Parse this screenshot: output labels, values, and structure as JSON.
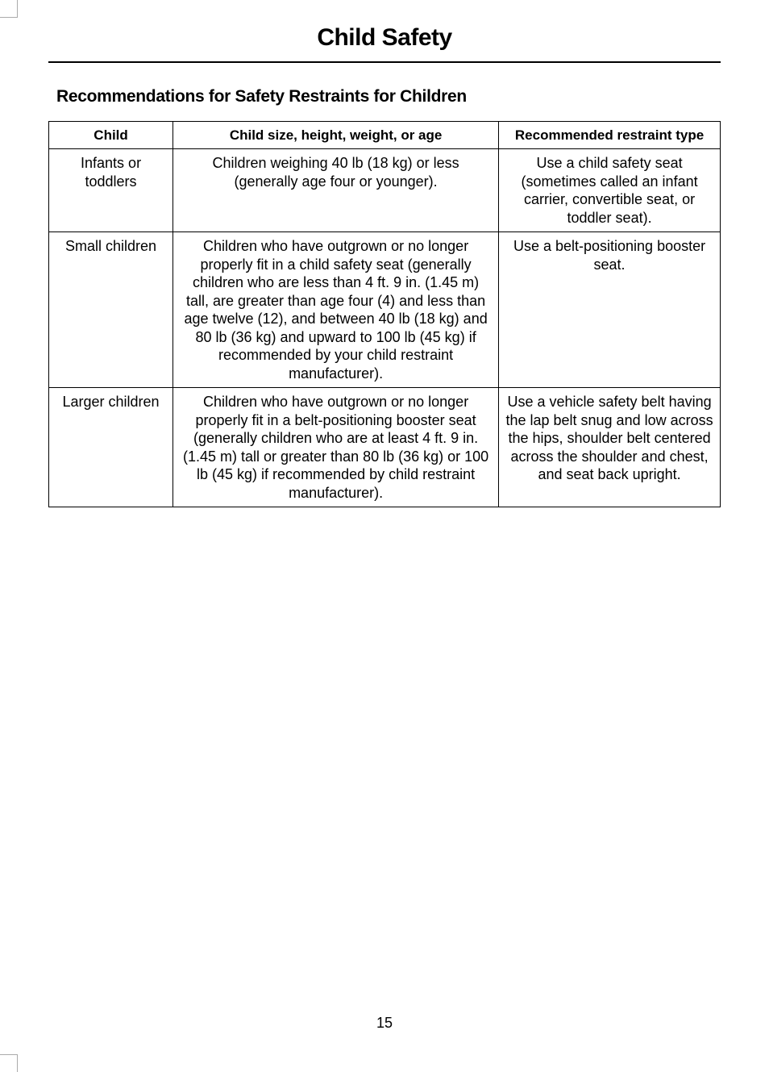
{
  "page": {
    "title": "Child Safety",
    "section_heading": "Recommendations for Safety Restraints for Children",
    "page_number": "15"
  },
  "table": {
    "headers": {
      "col1": "Child",
      "col2": "Child size, height, weight, or age",
      "col3": "Recommended restraint type"
    },
    "rows": [
      {
        "child": "Infants or toddlers",
        "size": "Children weighing 40 lb (18 kg) or less (generally age four or younger).",
        "restraint": "Use a child safety seat (sometimes called an infant carrier, convertible seat, or toddler seat)."
      },
      {
        "child": "Small children",
        "size": "Children who have outgrown or no longer properly fit in a child safety seat (generally children who are less than 4 ft. 9 in. (1.45 m) tall, are greater than age four (4) and less than age twelve (12), and between 40 lb (18 kg) and 80 lb (36 kg) and upward to 100 lb (45 kg) if recommended by your child restraint manufacturer).",
        "restraint": "Use a belt-positioning booster seat."
      },
      {
        "child": "Larger children",
        "size": "Children who have outgrown or no longer properly fit in a belt-positioning booster seat (generally children who are at least 4 ft. 9 in. (1.45 m) tall or greater than 80 lb (36 kg) or 100 lb (45 kg) if recommended by child restraint manufacturer).",
        "restraint": "Use a vehicle safety belt having the lap belt snug and low across the hips, shoulder belt centered across the shoulder and chest, and seat back upright."
      }
    ]
  }
}
